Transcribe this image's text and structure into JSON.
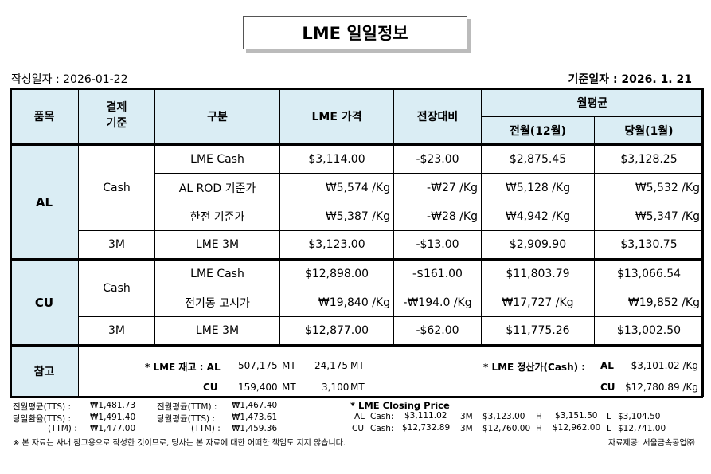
{
  "title": "LME 일일정보",
  "created": "작성일자 :  2026-01-22",
  "basis": "기준일자 : 2026.   1.    21",
  "headers": {
    "item": "품목",
    "settle": "결제\n기준",
    "type": "구분",
    "price": "LME 가격",
    "change": "전장대비",
    "monthly": "월평균",
    "prev": "전월(12월)",
    "cur": "당월(1월)"
  },
  "rows": [
    {
      "item": "AL",
      "settle": "Cash",
      "type": "LME Cash",
      "price": "$3,114.00",
      "change": "-$23.00",
      "prev": "$2,875.45",
      "cur": "$3,128.25"
    },
    {
      "type": "AL ROD 기준가",
      "price": "₩5,574 /Kg",
      "change": "-₩27 /Kg",
      "prev": "₩5,128 /Kg",
      "cur": "₩5,532 /Kg"
    },
    {
      "type": "한전 기준가",
      "price": "₩5,387 /Kg",
      "change": "-₩28 /Kg",
      "prev": "₩4,942 /Kg",
      "cur": "₩5,347 /Kg"
    },
    {
      "settle": "3M",
      "type": "LME  3M",
      "price": "$3,123.00",
      "change": "-$13.00",
      "prev": "$2,909.90",
      "cur": "$3,130.75"
    },
    {
      "item": "CU",
      "settle": "Cash",
      "type": "LME Cash",
      "price": "$12,898.00",
      "change": "-$161.00",
      "prev": "$11,803.79",
      "cur": "$13,066.54"
    },
    {
      "type": "전기동 고시가",
      "price": "₩19,840 /Kg",
      "change": "-₩194.0  /Kg",
      "prev": "₩17,727 /Kg",
      "cur": "₩19,852 /Kg"
    },
    {
      "settle": "3M",
      "type": "LME 3M",
      "price": "$12,877.00",
      "change": "-$62.00",
      "prev": "$11,775.26",
      "cur": "$13,002.50"
    }
  ],
  "reference": {
    "label": "참고",
    "stock_label": "* LME 재고 : AL",
    "stock_cu": "CU",
    "al_stock": "507,175",
    "al_change": "24,175",
    "cu_stock": "159,400",
    "cu_change": "3,100",
    "unit": "MT",
    "settle_label": "* LME 정산가(Cash) :",
    "al": "AL",
    "cu": "CU",
    "al_settle": "$3,101.02  /Kg",
    "cu_settle": "$12,780.89  /Kg"
  },
  "fx": [
    {
      "l1": "전월평균(TTS) :",
      "v1": "₩1,481.73",
      "l2": "전월평균(TTM) :",
      "v2": "₩1,467.40"
    },
    {
      "l1": "당일환율(TTS) :",
      "v1": "₩1,491.40",
      "l2": "당월평균(TTS) :",
      "v2": "₩1,473.61"
    },
    {
      "l1": "(TTM) :",
      "v1": "₩1,477.00",
      "l2": "(TTM) :",
      "v2": "₩1,459.36"
    }
  ],
  "closing": {
    "title": "* LME Closing Price",
    "rows": [
      {
        "metal": "AL",
        "cash_label": "Cash:",
        "cash": "$3,111.02",
        "m3_label": "3M",
        "m3": "$3,123.00",
        "h_label": "H",
        "h": "$3,151.50",
        "l_label": "L",
        "l": "$3,104.50"
      },
      {
        "metal": "CU",
        "cash_label": "Cash:",
        "cash": "$12,732.89",
        "m3_label": "3M",
        "m3": "$12,760.00",
        "h_label": "H",
        "h": "$12,962.00",
        "l_label": "L",
        "l": "$12,741.00"
      }
    ]
  },
  "disclaimer": "※ 본 자료는 사내 참고용으로 작성한 것이므로, 당사는 본 자료에 대한 어떠한 책임도 지지 않습니다.",
  "source": "자료제공: 서울금속공업㈜"
}
